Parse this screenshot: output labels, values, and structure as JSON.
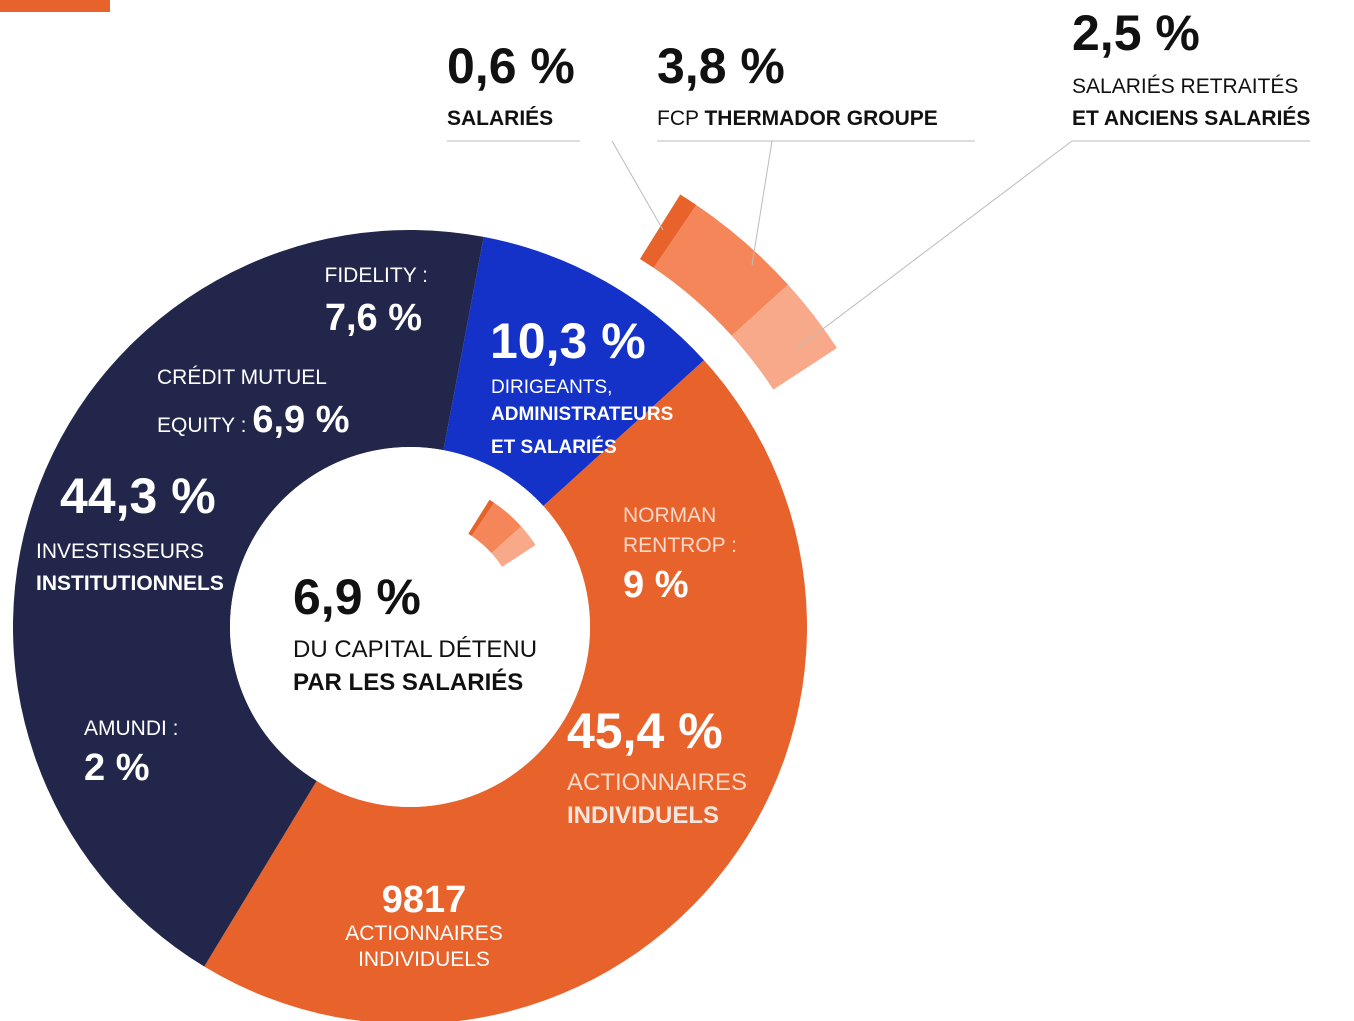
{
  "chart_data": {
    "type": "donut",
    "values": [
      10.3,
      45.4,
      44.3
    ],
    "value_labels": [
      "10,3 %",
      "45,4 %",
      "44,3 %"
    ],
    "labels": [
      [
        "DIRIGEANTS,",
        "ADMINISTRATEURS",
        "ET SALARIÉS"
      ],
      [
        "ACTIONNAIRES",
        "INDIVIDUELS"
      ],
      [
        "INVESTISSEURS",
        "INSTITUTIONNELS"
      ]
    ],
    "colors": [
      "#1432c8",
      "#e8622b",
      "#22264a"
    ],
    "details": [
      {
        "name": [
          "FIDELITY :"
        ],
        "value": 7.6,
        "value_label": "7,6 %"
      },
      {
        "name": [
          "CRÉDIT MUTUEL",
          "EQUITY :"
        ],
        "value": 6.9,
        "value_label": "6,9 %"
      },
      {
        "name": [
          "AMUNDI :"
        ],
        "value": 2,
        "value_label": "2 %"
      },
      {
        "name": [
          "NORMAN",
          "RENTROP :"
        ],
        "value": 9,
        "value_label": "9 %"
      }
    ],
    "breakdown": {
      "values": [
        0.6,
        3.8,
        2.5
      ],
      "value_labels": [
        "0,6 %",
        "3,8 %",
        "2,5 %"
      ],
      "labels": [
        [
          "SALARIÉS"
        ],
        [
          "FCP",
          "THERMADOR GROUPE"
        ],
        [
          "SALARIÉS RETRAITÉS",
          "ET ANCIENS SALARIÉS"
        ]
      ],
      "colors": [
        "#e8622b",
        "#f5865a",
        "#f8a98a"
      ]
    },
    "center": {
      "value": 6.9,
      "value_label": "6,9 %",
      "text": [
        "DU CAPITAL DÉTENU",
        "PAR LES SALARIÉS"
      ]
    },
    "annotation": {
      "value": 9817,
      "text": [
        "ACTIONNAIRES",
        "INDIVIDUELS"
      ]
    }
  }
}
